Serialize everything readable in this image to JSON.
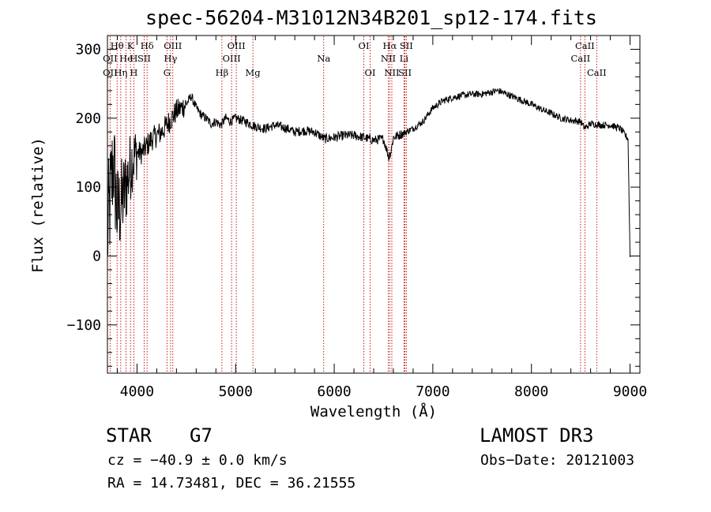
{
  "title": "spec-56204-M31012N34B201_sp12-174.fits",
  "chart_data": {
    "type": "line",
    "xlabel": "Wavelength (Å)",
    "ylabel": "Flux (relative)",
    "xlim": [
      3700,
      9100
    ],
    "ylim": [
      -170,
      320
    ],
    "xticks": [
      4000,
      5000,
      6000,
      7000,
      8000,
      9000
    ],
    "yticks": [
      -100,
      0,
      100,
      200,
      300
    ],
    "xtick_labels": [
      "4000",
      "5000",
      "6000",
      "7000",
      "8000",
      "9000"
    ],
    "ytick_labels": [
      "−100",
      "0",
      "100",
      "200",
      "300"
    ],
    "series": [
      {
        "name": "spectrum",
        "x": [
          3700,
          3760,
          3800,
          3850,
          3900,
          3950,
          4000,
          4050,
          4100,
          4150,
          4200,
          4250,
          4300,
          4350,
          4400,
          4450,
          4500,
          4550,
          4600,
          4650,
          4700,
          4750,
          4800,
          4850,
          4900,
          4950,
          5000,
          5100,
          5200,
          5300,
          5400,
          5500,
          5600,
          5700,
          5800,
          5900,
          6000,
          6100,
          6200,
          6300,
          6400,
          6500,
          6560,
          6600,
          6700,
          6800,
          6900,
          7000,
          7100,
          7200,
          7300,
          7400,
          7500,
          7600,
          7650,
          7700,
          7800,
          7900,
          8000,
          8100,
          8200,
          8300,
          8400,
          8500,
          8540,
          8600,
          8700,
          8800,
          8900,
          8980,
          9000
        ],
        "y": [
          30,
          140,
          60,
          80,
          110,
          140,
          150,
          150,
          160,
          170,
          175,
          180,
          190,
          200,
          210,
          215,
          220,
          232,
          215,
          205,
          200,
          192,
          195,
          190,
          200,
          195,
          200,
          195,
          188,
          185,
          190,
          186,
          180,
          182,
          180,
          170,
          172,
          175,
          175,
          172,
          168,
          170,
          140,
          172,
          178,
          185,
          195,
          215,
          225,
          230,
          233,
          235,
          235,
          238,
          240,
          238,
          232,
          226,
          220,
          213,
          207,
          200,
          197,
          195,
          185,
          192,
          190,
          190,
          185,
          170,
          0
        ],
        "noise": 10
      }
    ],
    "line_markers": {
      "top_row": [
        {
          "label": "Hθ",
          "wavelength": 3798
        },
        {
          "label": "K",
          "wavelength": 3934
        },
        {
          "label": "Hδ",
          "wavelength": 4102
        },
        {
          "label": "OIII",
          "wavelength": 4363
        },
        {
          "label": "OIII",
          "wavelength": 5007
        },
        {
          "label": "OI",
          "wavelength": 6300
        },
        {
          "label": "Hα",
          "wavelength": 6563
        },
        {
          "label": "SII",
          "wavelength": 6731
        },
        {
          "label": "CaII",
          "wavelength": 8542
        }
      ],
      "middle_row": [
        {
          "label": "OII",
          "wavelength": 3727
        },
        {
          "label": "He",
          "wavelength": 3889
        },
        {
          "label": "H",
          "wavelength": 3968
        },
        {
          "label": "SII",
          "wavelength": 4072
        },
        {
          "label": "Hγ",
          "wavelength": 4340
        },
        {
          "label": "OIII",
          "wavelength": 4959
        },
        {
          "label": "Na",
          "wavelength": 5893
        },
        {
          "label": "NII",
          "wavelength": 6548
        },
        {
          "label": "Li",
          "wavelength": 6708
        },
        {
          "label": "CaII",
          "wavelength": 8498
        }
      ],
      "bottom_row": [
        {
          "label": "OII",
          "wavelength": 3727
        },
        {
          "label": "Hη",
          "wavelength": 3835
        },
        {
          "label": "H",
          "wavelength": 3968
        },
        {
          "label": "G",
          "wavelength": 4304
        },
        {
          "label": "Hβ",
          "wavelength": 4861
        },
        {
          "label": "Mg",
          "wavelength": 5175
        },
        {
          "label": "OI",
          "wavelength": 6364
        },
        {
          "label": "NII",
          "wavelength": 6584
        },
        {
          "label": "SII",
          "wavelength": 6717
        },
        {
          "label": "CaII",
          "wavelength": 8662
        }
      ]
    }
  },
  "info": {
    "object_class": "STAR",
    "subclass": "G7",
    "cz": "cz = −40.9 ± 0.0 km/s",
    "survey": "LAMOST DR3",
    "obs_date": "Obs−Date: 20121003",
    "coords": "RA =  14.73481, DEC =  36.21555"
  }
}
